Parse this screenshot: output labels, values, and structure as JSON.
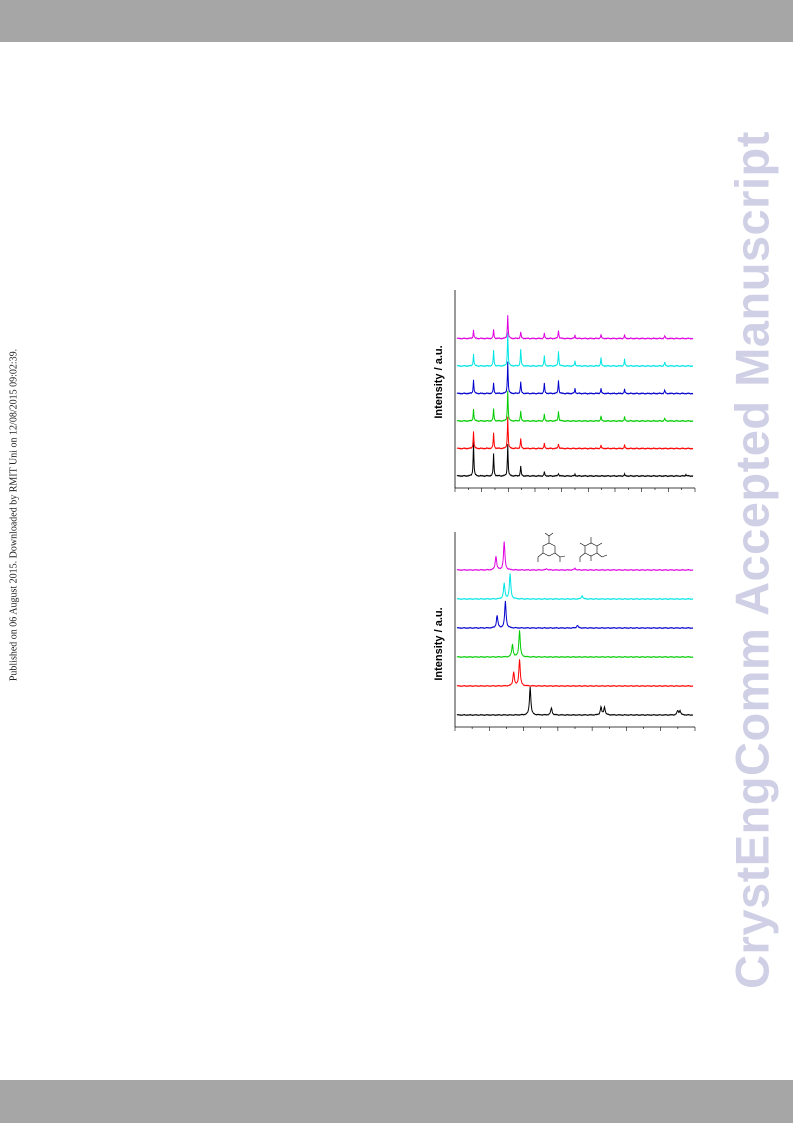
{
  "side_note": "Published on 06 August 2015. Downloaded by RMIT Uni on 12/08/2015 09:02:39.",
  "watermark": "CrystEngComm Accepted Manuscript",
  "chart_data": [
    {
      "type": "line",
      "ylabel": "Intensity / a.u.",
      "xlabel": "",
      "grid": false,
      "series": [
        {
          "color": "#000000",
          "offset": 0,
          "peaks": [
            [
              0.07,
              1.0
            ],
            [
              0.155,
              0.65
            ],
            [
              0.215,
              0.95
            ],
            [
              0.27,
              0.3
            ],
            [
              0.37,
              0.12
            ],
            [
              0.43,
              0.08
            ],
            [
              0.5,
              0.05
            ],
            [
              0.71,
              0.05
            ],
            [
              0.97,
              0.05
            ]
          ]
        },
        {
          "color": "#ff0000",
          "offset": 1,
          "peaks": [
            [
              0.07,
              0.5
            ],
            [
              0.155,
              0.45
            ],
            [
              0.215,
              0.95
            ],
            [
              0.27,
              0.3
            ],
            [
              0.37,
              0.15
            ],
            [
              0.43,
              0.15
            ],
            [
              0.61,
              0.1
            ],
            [
              0.71,
              0.1
            ]
          ]
        },
        {
          "color": "#00cc00",
          "offset": 2,
          "peaks": [
            [
              0.07,
              0.35
            ],
            [
              0.155,
              0.35
            ],
            [
              0.215,
              0.9
            ],
            [
              0.27,
              0.3
            ],
            [
              0.37,
              0.2
            ],
            [
              0.43,
              0.3
            ],
            [
              0.61,
              0.15
            ],
            [
              0.71,
              0.12
            ],
            [
              0.88,
              0.08
            ]
          ]
        },
        {
          "color": "#0000cc",
          "offset": 3,
          "peaks": [
            [
              0.07,
              0.4
            ],
            [
              0.155,
              0.3
            ],
            [
              0.215,
              0.95
            ],
            [
              0.27,
              0.35
            ],
            [
              0.37,
              0.3
            ],
            [
              0.43,
              0.4
            ],
            [
              0.5,
              0.15
            ],
            [
              0.61,
              0.15
            ],
            [
              0.71,
              0.12
            ],
            [
              0.88,
              0.1
            ]
          ]
        },
        {
          "color": "#00e5e5",
          "offset": 4,
          "peaks": [
            [
              0.07,
              0.35
            ],
            [
              0.155,
              0.45
            ],
            [
              0.215,
              1.0
            ],
            [
              0.27,
              0.5
            ],
            [
              0.37,
              0.3
            ],
            [
              0.43,
              0.45
            ],
            [
              0.5,
              0.15
            ],
            [
              0.61,
              0.25
            ],
            [
              0.71,
              0.2
            ],
            [
              0.88,
              0.12
            ]
          ]
        },
        {
          "color": "#e000e0",
          "offset": 5,
          "peaks": [
            [
              0.07,
              0.25
            ],
            [
              0.155,
              0.25
            ],
            [
              0.215,
              0.7
            ],
            [
              0.27,
              0.2
            ],
            [
              0.37,
              0.15
            ],
            [
              0.43,
              0.25
            ],
            [
              0.5,
              0.1
            ],
            [
              0.61,
              0.12
            ],
            [
              0.71,
              0.1
            ],
            [
              0.88,
              0.08
            ]
          ]
        }
      ]
    },
    {
      "type": "line",
      "ylabel": "Intensity / a.u.",
      "xlabel": "",
      "grid": false,
      "series": [
        {
          "color": "#000000",
          "offset": 0,
          "peaks": [
            [
              0.31,
              1.0
            ],
            [
              0.4,
              0.25
            ],
            [
              0.61,
              0.28
            ],
            [
              0.625,
              0.28
            ],
            [
              0.935,
              0.15
            ],
            [
              0.945,
              0.15
            ]
          ]
        },
        {
          "color": "#ff0000",
          "offset": 1,
          "peaks": [
            [
              0.24,
              0.5
            ],
            [
              0.265,
              0.95
            ]
          ]
        },
        {
          "color": "#00cc00",
          "offset": 2,
          "peaks": [
            [
              0.235,
              0.45
            ],
            [
              0.265,
              0.95
            ]
          ]
        },
        {
          "color": "#0000cc",
          "offset": 3,
          "peaks": [
            [
              0.17,
              0.45
            ],
            [
              0.205,
              0.95
            ],
            [
              0.51,
              0.1
            ]
          ]
        },
        {
          "color": "#00e5e5",
          "offset": 4,
          "peaks": [
            [
              0.2,
              0.55
            ],
            [
              0.225,
              0.9
            ],
            [
              0.53,
              0.12
            ]
          ]
        },
        {
          "color": "#e000e0",
          "offset": 5,
          "peaks": [
            [
              0.165,
              0.5
            ],
            [
              0.2,
              1.0
            ],
            [
              0.38,
              0.05
            ],
            [
              0.5,
              0.06
            ]
          ]
        }
      ]
    }
  ]
}
